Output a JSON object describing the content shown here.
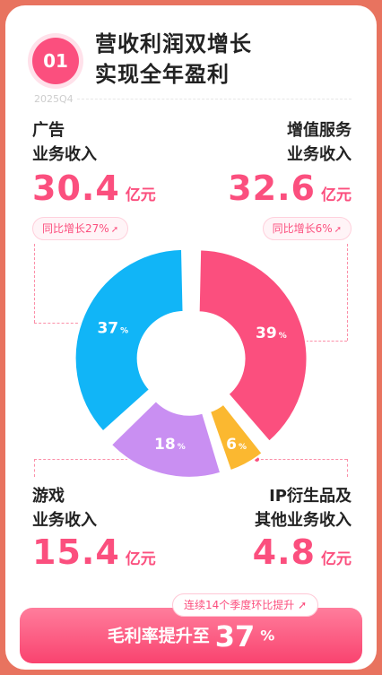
{
  "section": {
    "number": "01",
    "headline_line1": "营收利润双增长",
    "headline_line2": "实现全年盈利",
    "period": "2025Q4"
  },
  "segments": {
    "ads": {
      "label_line1": "广告",
      "label_line2": "业务收入",
      "value": "30.4",
      "unit": "亿元",
      "yoy": "同比增长27%",
      "arrow": "➚"
    },
    "vas": {
      "label_line1": "增值服务",
      "label_line2": "业务收入",
      "value": "32.6",
      "unit": "亿元",
      "yoy": "同比增长6%",
      "arrow": "➚"
    },
    "games": {
      "label_line1": "游戏",
      "label_line2": "业务收入",
      "value": "15.4",
      "unit": "亿元"
    },
    "ip": {
      "label_line1": "IP衍生品及",
      "label_line2": "其他业务收入",
      "value": "4.8",
      "unit": "亿元"
    }
  },
  "chart_data": {
    "type": "pie",
    "donut": true,
    "slices": [
      {
        "key": "vas",
        "value": 39,
        "label": "39",
        "color": "#fb4f7e"
      },
      {
        "key": "ip",
        "value": 6,
        "label": "6",
        "color": "#fbb830"
      },
      {
        "key": "games",
        "value": 18,
        "label": "18",
        "color": "#c98ff2"
      },
      {
        "key": "ads",
        "value": 37,
        "label": "37",
        "color": "#11b5f7"
      }
    ],
    "percent_sign": "%"
  },
  "gross_margin": {
    "streak": "连续14个季度环比提升",
    "arrow": "➚",
    "prefix": "毛利率提升至",
    "value": "37",
    "suffix": "%"
  },
  "colors": {
    "accent": "#fb4f7e",
    "background": "#e8735f"
  }
}
